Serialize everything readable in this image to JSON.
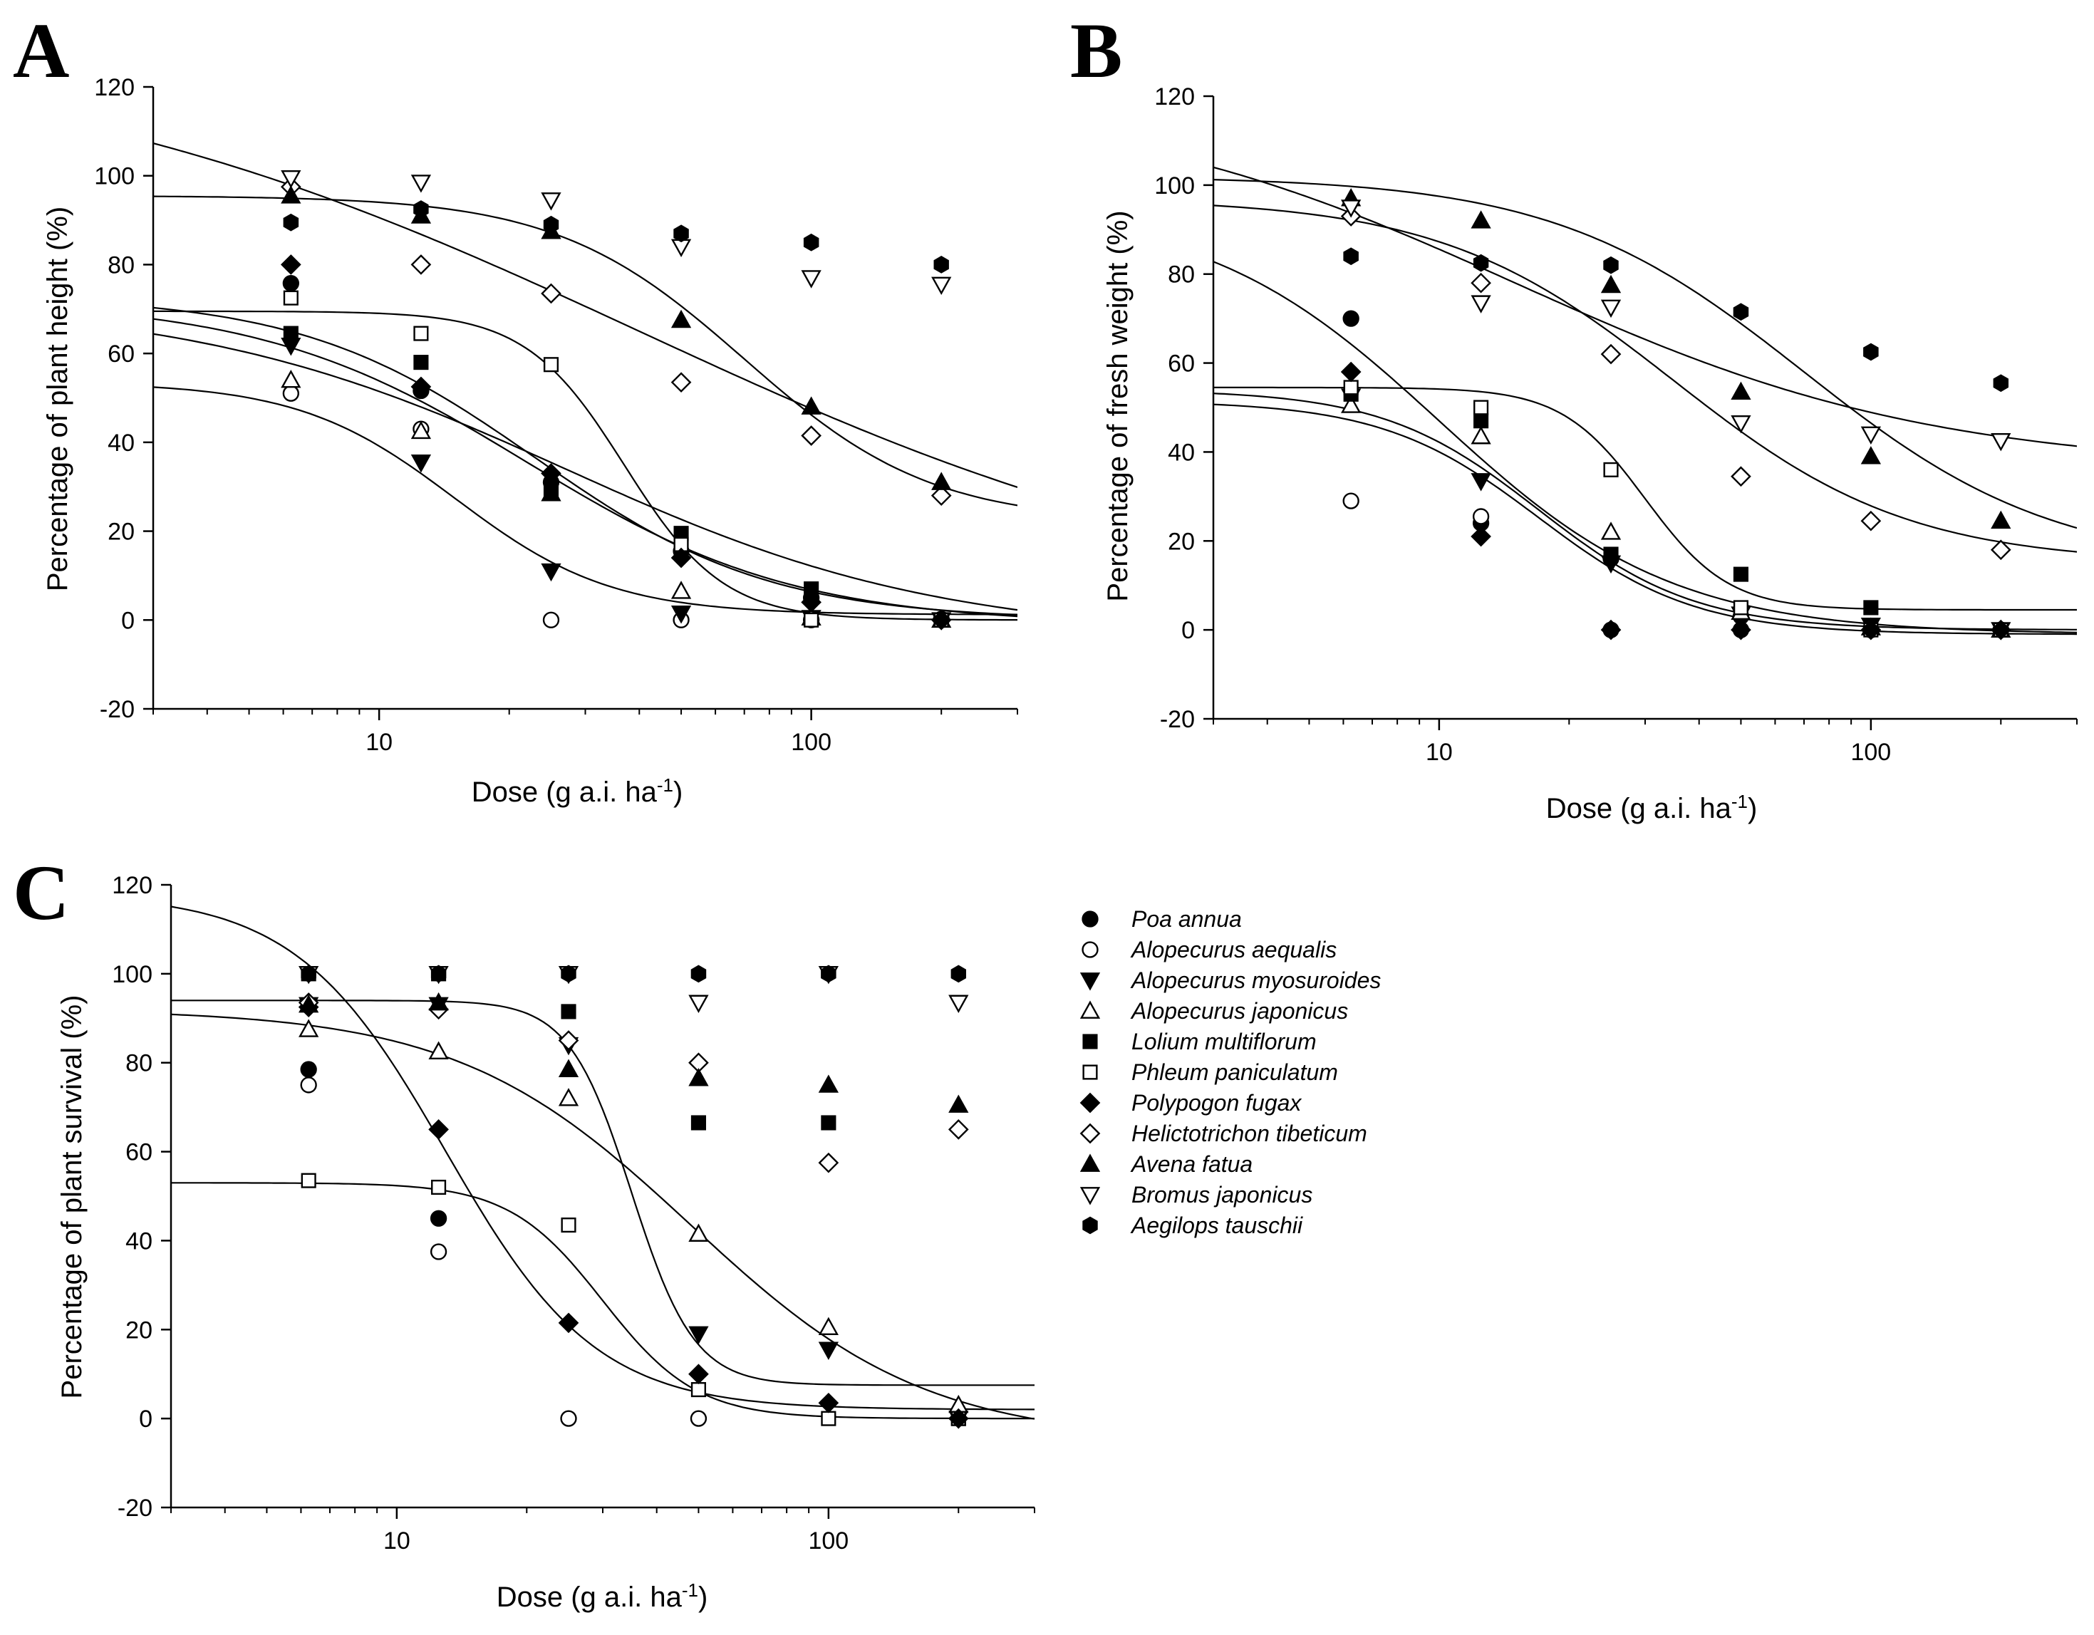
{
  "figure": {
    "colors": {
      "ink": "#000000",
      "background": "#ffffff"
    },
    "legend": {
      "placement": "right of panel C",
      "entries": [
        {
          "name": "Poa annua",
          "marker": "filled-circle"
        },
        {
          "name": "Alopecurus aequalis",
          "marker": "open-circle"
        },
        {
          "name": "Alopecurus myosuroides",
          "marker": "filled-triangle-down"
        },
        {
          "name": "Alopecurus japonicus",
          "marker": "open-triangle-up"
        },
        {
          "name": "Lolium multiflorum",
          "marker": "filled-square"
        },
        {
          "name": "Phleum paniculatum",
          "marker": "open-square"
        },
        {
          "name": "Polypogon fugax",
          "marker": "filled-diamond"
        },
        {
          "name": "Helictotrichon tibeticum",
          "marker": "open-diamond"
        },
        {
          "name": "Avena fatua",
          "marker": "filled-triangle-up"
        },
        {
          "name": "Bromus japonicus",
          "marker": "open-triangle-down"
        },
        {
          "name": "Aegilops tauschii",
          "marker": "filled-hexagon"
        }
      ]
    }
  },
  "chart_data": [
    {
      "panel": "A",
      "type": "scatter",
      "xlabel_main": "Dose (g a.i. ha",
      "xlabel_sup": "-1",
      "xlabel_end": ")",
      "ylabel": "Percentage of plant height (%)",
      "xscale": "log",
      "xlim": [
        3,
        300
      ],
      "ylim": [
        -20,
        120
      ],
      "xticks": [
        10,
        100
      ],
      "xtick_labels": [
        "10",
        "100"
      ],
      "yticks": [
        -20,
        0,
        20,
        40,
        60,
        80,
        100,
        120
      ],
      "ytick_labels": [
        "-20",
        "0",
        "20",
        "40",
        "60",
        "80",
        "100",
        "120"
      ],
      "x": [
        6.25,
        12.5,
        25,
        50,
        100,
        200
      ],
      "series": [
        {
          "name": "Poa annua",
          "marker": "filled-circle",
          "values": [
            75.8,
            51.6,
            31.0,
            15.5,
            5.0,
            0.2
          ]
        },
        {
          "name": "Alopecurus aequalis",
          "marker": "open-circle",
          "values": [
            51.0,
            43.0,
            0.0,
            0.0,
            0.0,
            0.0
          ]
        },
        {
          "name": "Alopecurus myosuroides",
          "marker": "filled-triangle-down",
          "values": [
            61.8,
            35.5,
            11.0,
            1.5,
            0.5,
            0.0
          ]
        },
        {
          "name": "Alopecurus japonicus",
          "marker": "open-triangle-up",
          "values": [
            54.0,
            42.5,
            28.5,
            6.5,
            0.5,
            0.0
          ]
        },
        {
          "name": "Lolium multiflorum",
          "marker": "filled-square",
          "values": [
            64.5,
            58.0,
            28.5,
            19.5,
            7.0,
            0.0
          ]
        },
        {
          "name": "Phleum paniculatum",
          "marker": "open-square",
          "values": [
            72.5,
            64.5,
            57.5,
            17.0,
            0.0,
            0.0
          ]
        },
        {
          "name": "Polypogon fugax",
          "marker": "filled-diamond",
          "values": [
            80.0,
            52.5,
            33.0,
            14.0,
            4.0,
            0.0
          ]
        },
        {
          "name": "Helictotrichon tibeticum",
          "marker": "open-diamond",
          "values": [
            97.5,
            80.0,
            73.5,
            53.5,
            41.5,
            28.0
          ]
        },
        {
          "name": "Avena fatua",
          "marker": "filled-triangle-up",
          "values": [
            95.5,
            91.0,
            87.5,
            67.5,
            48.0,
            31.0
          ]
        },
        {
          "name": "Bromus japonicus",
          "marker": "open-triangle-down",
          "values": [
            99.5,
            98.5,
            94.5,
            84.0,
            77.0,
            75.5
          ]
        },
        {
          "name": "Aegilops tauschii",
          "marker": "filled-hexagon",
          "values": [
            89.5,
            92.5,
            89.0,
            87.0,
            85.0,
            80.0
          ]
        }
      ],
      "fitted_curves": [
        {
          "top": 73,
          "bottom": 0,
          "ec50": 23,
          "slope": 1.6
        },
        {
          "top": 72,
          "bottom": -1,
          "ec50": 22,
          "slope": 1.4
        },
        {
          "top": 72,
          "bottom": -4,
          "ec50": 27,
          "slope": 1.0
        },
        {
          "top": 69.5,
          "bottom": 0,
          "ec50": 37,
          "slope": 3.8
        },
        {
          "top": 53.5,
          "bottom": 1.2,
          "ec50": 15,
          "slope": 2.4
        },
        {
          "top": 130,
          "bottom": 0,
          "ec50": 40,
          "slope": 0.6
        },
        {
          "top": 95.5,
          "bottom": 22,
          "ec50": 70,
          "slope": 2.0
        }
      ]
    },
    {
      "panel": "B",
      "type": "scatter",
      "xlabel_main": "Dose (g a.i. ha",
      "xlabel_sup": "-1",
      "xlabel_end": ")",
      "ylabel": "Percentage of fresh weight (%)",
      "xscale": "log",
      "xlim": [
        3,
        300
      ],
      "ylim": [
        -20,
        120
      ],
      "xticks": [
        10,
        100
      ],
      "xtick_labels": [
        "10",
        "100"
      ],
      "yticks": [
        -20,
        0,
        20,
        40,
        60,
        80,
        100,
        120
      ],
      "ytick_labels": [
        "-20",
        "0",
        "20",
        "40",
        "60",
        "80",
        "100",
        "120"
      ],
      "x": [
        6.25,
        12.5,
        25,
        50,
        100,
        200
      ],
      "series": [
        {
          "name": "Poa annua",
          "marker": "filled-circle",
          "values": [
            70.0,
            24.0,
            16.0,
            3.0,
            0.0,
            0.0
          ]
        },
        {
          "name": "Alopecurus aequalis",
          "marker": "open-circle",
          "values": [
            29.0,
            25.5,
            0.0,
            0.0,
            0.0,
            0.0
          ]
        },
        {
          "name": "Alopecurus myosuroides",
          "marker": "filled-triangle-down",
          "values": [
            52.5,
            33.5,
            15.0,
            3.5,
            1.0,
            0.0
          ]
        },
        {
          "name": "Alopecurus japonicus",
          "marker": "open-triangle-up",
          "values": [
            50.5,
            43.5,
            22.0,
            4.0,
            0.5,
            0.0
          ]
        },
        {
          "name": "Lolium multiflorum",
          "marker": "filled-square",
          "values": [
            53.0,
            47.0,
            17.0,
            12.5,
            5.0,
            0.0
          ]
        },
        {
          "name": "Phleum paniculatum",
          "marker": "open-square",
          "values": [
            54.5,
            50.0,
            36.0,
            5.0,
            0.0,
            0.0
          ]
        },
        {
          "name": "Polypogon fugax",
          "marker": "filled-diamond",
          "values": [
            58.0,
            21.0,
            0.0,
            0.0,
            0.0,
            0.0
          ]
        },
        {
          "name": "Helictotrichon tibeticum",
          "marker": "open-diamond",
          "values": [
            93.0,
            78.0,
            62.0,
            34.5,
            24.5,
            18.0
          ]
        },
        {
          "name": "Avena fatua",
          "marker": "filled-triangle-up",
          "values": [
            97.0,
            92.0,
            77.5,
            53.5,
            39.0,
            24.5
          ]
        },
        {
          "name": "Bromus japonicus",
          "marker": "open-triangle-down",
          "values": [
            95.0,
            73.5,
            72.5,
            46.5,
            44.0,
            42.5
          ]
        },
        {
          "name": "Aegilops tauschii",
          "marker": "filled-hexagon",
          "values": [
            84.0,
            82.5,
            82.0,
            71.5,
            62.5,
            55.5
          ]
        }
      ],
      "fitted_curves": [
        {
          "top": 54.5,
          "bottom": 4.5,
          "ec50": 30,
          "slope": 4.5
        },
        {
          "top": 51.5,
          "bottom": -1,
          "ec50": 17,
          "slope": 2.4
        },
        {
          "top": 54,
          "bottom": 0,
          "ec50": 17,
          "slope": 2.4
        },
        {
          "top": 95,
          "bottom": -1,
          "ec50": 10,
          "slope": 1.6
        },
        {
          "top": 97,
          "bottom": 15,
          "ec50": 35,
          "slope": 1.6
        },
        {
          "top": 102,
          "bottom": 14,
          "ec50": 70,
          "slope": 1.5
        },
        {
          "top": 120,
          "bottom": 36,
          "ec50": 15,
          "slope": 0.9
        }
      ]
    },
    {
      "panel": "C",
      "type": "scatter",
      "xlabel_main": "Dose (g a.i. ha",
      "xlabel_sup": "-1",
      "xlabel_end": ")",
      "ylabel": "Percentage of plant survival (%)",
      "xscale": "log",
      "xlim": [
        3,
        300
      ],
      "ylim": [
        -20,
        120
      ],
      "xticks": [
        10,
        100
      ],
      "xtick_labels": [
        "10",
        "100"
      ],
      "yticks": [
        -20,
        0,
        20,
        40,
        60,
        80,
        100,
        120
      ],
      "ytick_labels": [
        "-20",
        "0",
        "20",
        "40",
        "60",
        "80",
        "100",
        "120"
      ],
      "x": [
        6.25,
        12.5,
        25,
        50,
        100,
        200
      ],
      "series": [
        {
          "name": "Poa annua",
          "marker": "filled-circle",
          "values": [
            78.5,
            45.0,
            null,
            null,
            null,
            null
          ]
        },
        {
          "name": "Alopecurus aequalis",
          "marker": "open-circle",
          "values": [
            75.0,
            37.5,
            0.0,
            0.0,
            null,
            null
          ]
        },
        {
          "name": "Alopecurus myosuroides",
          "marker": "filled-triangle-down",
          "values": [
            93.0,
            93.0,
            84.0,
            19.0,
            15.5,
            0.0
          ]
        },
        {
          "name": "Alopecurus japonicus",
          "marker": "open-triangle-up",
          "values": [
            87.5,
            82.5,
            72.0,
            41.5,
            20.5,
            3.0
          ]
        },
        {
          "name": "Lolium multiflorum",
          "marker": "filled-square",
          "values": [
            100,
            100,
            91.5,
            66.5,
            66.5,
            0.0
          ]
        },
        {
          "name": "Phleum paniculatum",
          "marker": "open-square",
          "values": [
            53.5,
            52.0,
            43.5,
            6.5,
            0.0,
            0.0
          ]
        },
        {
          "name": "Polypogon fugax",
          "marker": "filled-diamond",
          "values": [
            92.5,
            65.0,
            21.5,
            10.0,
            3.5,
            0.0
          ]
        },
        {
          "name": "Helictotrichon tibeticum",
          "marker": "open-diamond",
          "values": [
            93.5,
            92.0,
            85.0,
            80.0,
            57.5,
            65.0
          ]
        },
        {
          "name": "Avena fatua",
          "marker": "filled-triangle-up",
          "values": [
            93.0,
            93.5,
            78.5,
            76.5,
            75.0,
            70.5
          ]
        },
        {
          "name": "Bromus japonicus",
          "marker": "open-triangle-down",
          "values": [
            100,
            100,
            100,
            93.5,
            100,
            93.5
          ]
        },
        {
          "name": "Aegilops tauschii",
          "marker": "filled-hexagon",
          "values": [
            100,
            100,
            100,
            100,
            100,
            100
          ]
        }
      ],
      "fitted_curves": [
        {
          "top": 118,
          "bottom": 2,
          "ec50": 13,
          "slope": 2.5
        },
        {
          "top": 53,
          "bottom": 0,
          "ec50": 30,
          "slope": 4.0
        },
        {
          "top": 94,
          "bottom": 7.5,
          "ec50": 35,
          "slope": 6.0
        },
        {
          "top": 92,
          "bottom": -5,
          "ec50": 48,
          "slope": 1.6
        }
      ]
    }
  ]
}
